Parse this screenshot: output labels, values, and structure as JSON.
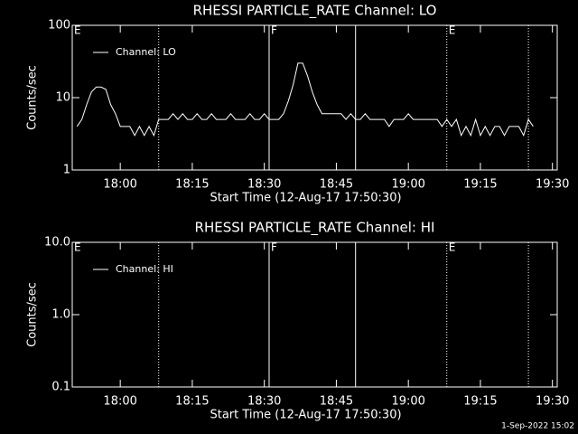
{
  "chart_data": [
    {
      "type": "line",
      "title": "RHESSI PARTICLE_RATE Channel: LO",
      "xlabel": "Start Time (12-Aug-17 17:50:30)",
      "ylabel": "Counts/sec",
      "log_y": true,
      "ylim": [
        1,
        100
      ],
      "yticks": [
        1,
        10,
        100
      ],
      "xlim": [
        "17:50",
        "19:31"
      ],
      "xticks": [
        "18:00",
        "18:15",
        "18:30",
        "18:45",
        "19:00",
        "19:15",
        "19:30"
      ],
      "legend": "top-left",
      "markers": [
        {
          "x": "18:08",
          "style": "dotted"
        },
        {
          "x": "18:31",
          "style": "solid"
        },
        {
          "x": "18:49",
          "style": "solid"
        },
        {
          "x": "19:08",
          "style": "dotted"
        },
        {
          "x": "19:25",
          "style": "dotted"
        }
      ],
      "marker_labels": [
        {
          "x": "17:50",
          "text": "E"
        },
        {
          "x": "18:31",
          "text": "F"
        },
        {
          "x": "19:08",
          "text": "E"
        }
      ],
      "x": [
        "17:51",
        "17:52",
        "17:53",
        "17:54",
        "17:55",
        "17:56",
        "17:57",
        "17:58",
        "17:59",
        "18:00",
        "18:01",
        "18:02",
        "18:03",
        "18:04",
        "18:05",
        "18:06",
        "18:07",
        "18:08",
        "18:09",
        "18:10",
        "18:11",
        "18:12",
        "18:13",
        "18:14",
        "18:15",
        "18:16",
        "18:17",
        "18:18",
        "18:19",
        "18:20",
        "18:21",
        "18:22",
        "18:23",
        "18:24",
        "18:25",
        "18:26",
        "18:27",
        "18:28",
        "18:29",
        "18:30",
        "18:31",
        "18:32",
        "18:33",
        "18:34",
        "18:35",
        "18:36",
        "18:37",
        "18:38",
        "18:39",
        "18:40",
        "18:41",
        "18:42",
        "18:43",
        "18:44",
        "18:45",
        "18:46",
        "18:47",
        "18:48",
        "18:49",
        "18:50",
        "18:51",
        "18:52",
        "18:53",
        "18:54",
        "18:55",
        "18:56",
        "18:57",
        "18:58",
        "18:59",
        "19:00",
        "19:01",
        "19:02",
        "19:03",
        "19:04",
        "19:05",
        "19:06",
        "19:07",
        "19:08",
        "19:09",
        "19:10",
        "19:11",
        "19:12",
        "19:13",
        "19:14",
        "19:15",
        "19:16",
        "19:17",
        "19:18",
        "19:19",
        "19:20",
        "19:21",
        "19:22",
        "19:23",
        "19:24",
        "19:25",
        "19:26"
      ],
      "series": [
        {
          "name": "Channel: LO",
          "color": "#ffffff",
          "values": [
            4,
            5,
            8,
            12,
            14,
            14,
            13,
            8,
            6,
            4,
            4,
            4,
            3,
            4,
            3,
            4,
            3,
            5,
            5,
            5,
            6,
            5,
            6,
            5,
            5,
            6,
            5,
            5,
            6,
            5,
            5,
            5,
            6,
            5,
            5,
            5,
            6,
            5,
            5,
            6,
            5,
            5,
            5,
            6,
            9,
            15,
            30,
            30,
            20,
            12,
            8,
            6,
            6,
            6,
            6,
            6,
            5,
            6,
            5,
            5,
            6,
            5,
            5,
            5,
            5,
            4,
            5,
            5,
            5,
            6,
            5,
            5,
            5,
            5,
            5,
            5,
            4,
            5,
            4,
            5,
            3,
            4,
            3,
            5,
            3,
            4,
            3,
            4,
            4,
            3,
            4,
            4,
            4,
            3,
            5,
            4
          ]
        }
      ]
    },
    {
      "type": "line",
      "title": "RHESSI PARTICLE_RATE Channel: HI",
      "xlabel": "Start Time (12-Aug-17 17:50:30)",
      "ylabel": "Counts/sec",
      "log_y": true,
      "ylim": [
        0.1,
        10
      ],
      "yticks": [
        0.1,
        {
          "value": 1,
          "label": "1.0"
        },
        {
          "value": 10,
          "label": "10.0"
        }
      ],
      "xlim": [
        "17:50",
        "19:31"
      ],
      "xticks": [
        "18:00",
        "18:15",
        "18:30",
        "18:45",
        "19:00",
        "19:15",
        "19:30"
      ],
      "legend": "top-left",
      "markers": [
        {
          "x": "18:08",
          "style": "dotted"
        },
        {
          "x": "18:31",
          "style": "solid"
        },
        {
          "x": "18:49",
          "style": "solid"
        },
        {
          "x": "19:08",
          "style": "dotted"
        },
        {
          "x": "19:25",
          "style": "dotted"
        }
      ],
      "marker_labels": [
        {
          "x": "17:50",
          "text": "E"
        },
        {
          "x": "18:31",
          "text": "F"
        },
        {
          "x": "19:08",
          "text": "E"
        }
      ],
      "x": [],
      "series": [
        {
          "name": "Channel: HI",
          "color": "#ffffff",
          "values": []
        }
      ]
    }
  ],
  "footer": "1-Sep-2022 15:02"
}
